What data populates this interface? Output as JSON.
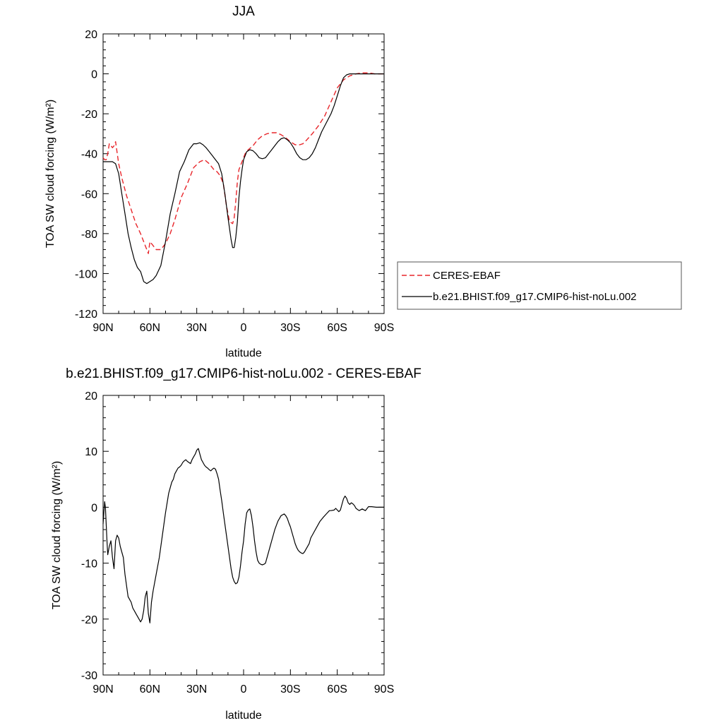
{
  "chart_data": [
    {
      "type": "line",
      "title": "JJA",
      "xlabel": "latitude",
      "ylabel": "TOA SW cloud forcing (W/m²)",
      "xlim": [
        90,
        -90
      ],
      "ylim": [
        -120,
        20
      ],
      "x_tick_values": [
        90,
        60,
        30,
        0,
        -30,
        -60,
        -90
      ],
      "x_tick_labels": [
        "90N",
        "60N",
        "30N",
        "0",
        "30S",
        "60S",
        "90S"
      ],
      "y_tick_values": [
        20,
        0,
        -20,
        -40,
        -60,
        -80,
        -100,
        -120
      ],
      "y_tick_labels": [
        "20",
        "0",
        "-20",
        "-40",
        "-60",
        "-80",
        "-100",
        "-120"
      ],
      "legend": "right",
      "series": [
        {
          "name": "CERES-EBAF",
          "color": "#e8262b",
          "dash": true,
          "x": [
            90,
            89,
            88,
            87,
            86,
            85,
            84,
            83,
            82,
            80,
            78,
            75,
            72,
            69,
            66,
            64,
            62,
            61,
            60,
            58,
            56,
            53,
            50,
            47,
            44,
            40,
            36,
            32,
            28,
            25,
            22,
            19,
            17,
            15,
            13,
            11,
            9,
            7,
            6,
            5,
            4,
            3,
            1,
            -1,
            -3,
            -6,
            -9,
            -12,
            -15,
            -18,
            -21,
            -24,
            -27,
            -30,
            -33,
            -36,
            -38,
            -40,
            -44,
            -48,
            -52,
            -56,
            -60,
            -64,
            -68,
            -72,
            -76,
            -80,
            -84,
            -88,
            -90
          ],
          "y": [
            -42,
            -43,
            -43,
            -40,
            -35,
            -36,
            -37,
            -36,
            -34,
            -45,
            -52,
            -61,
            -68,
            -75,
            -80,
            -84,
            -88,
            -90,
            -84,
            -86,
            -88,
            -88,
            -85,
            -80,
            -73,
            -62,
            -55,
            -47,
            -44,
            -43,
            -45,
            -48,
            -49,
            -51,
            -55,
            -66,
            -74,
            -75,
            -72,
            -64,
            -54,
            -48,
            -44,
            -40,
            -38,
            -36,
            -33,
            -31,
            -30,
            -29.5,
            -29.5,
            -30.5,
            -32,
            -34,
            -35.5,
            -35.5,
            -35,
            -33.5,
            -30,
            -26,
            -21,
            -14,
            -7,
            -3,
            -1,
            0,
            0.5,
            0.5,
            0,
            0,
            0
          ]
        },
        {
          "name": "b.e21.BHIST.f09_g17.CMIP6-hist-noLu.002",
          "color": "#000000",
          "dash": false,
          "x": [
            90,
            88,
            86,
            84,
            82,
            80,
            78,
            76,
            74,
            72,
            70,
            68,
            66,
            64,
            62,
            60,
            58,
            56,
            53,
            50,
            47,
            44,
            41,
            38,
            35,
            32,
            30,
            28,
            26,
            24,
            22,
            20,
            18,
            16,
            14,
            12,
            10,
            8,
            7,
            6,
            5,
            4,
            3,
            2,
            1,
            0,
            -2,
            -4,
            -6,
            -8,
            -10,
            -12,
            -14,
            -16,
            -18,
            -20,
            -22,
            -24,
            -26,
            -28,
            -30,
            -32,
            -34,
            -36,
            -38,
            -40,
            -42,
            -44,
            -46,
            -48,
            -50,
            -52,
            -54,
            -56,
            -58,
            -60,
            -62,
            -64,
            -66,
            -68,
            -70,
            -74,
            -78,
            -82,
            -86,
            -90
          ],
          "y": [
            -44,
            -44,
            -44,
            -44,
            -45,
            -50,
            -60,
            -70,
            -80,
            -87,
            -93,
            -97,
            -99,
            -104,
            -105,
            -104,
            -103,
            -101,
            -96,
            -84,
            -70,
            -60,
            -49,
            -44,
            -38,
            -35,
            -35,
            -34.5,
            -35.5,
            -37,
            -39,
            -41,
            -43,
            -45,
            -50,
            -60,
            -72,
            -83,
            -87,
            -87,
            -82,
            -74,
            -62,
            -54,
            -48,
            -43,
            -39,
            -38,
            -38.5,
            -40,
            -42,
            -42.5,
            -42,
            -40,
            -38,
            -36,
            -34,
            -32.5,
            -32,
            -33,
            -34.5,
            -37,
            -40,
            -42,
            -43,
            -43,
            -42,
            -40,
            -37,
            -33,
            -29,
            -26,
            -23,
            -20,
            -16,
            -11,
            -6,
            -2,
            -0.5,
            0,
            0,
            0,
            0,
            0,
            0,
            0
          ]
        }
      ]
    },
    {
      "type": "line",
      "title": "b.e21.BHIST.f09_g17.CMIP6-hist-noLu.002 - CERES-EBAF",
      "xlabel": "latitude",
      "ylabel": "TOA SW cloud forcing (W/m²)",
      "xlim": [
        90,
        -90
      ],
      "ylim": [
        -30,
        20
      ],
      "x_tick_values": [
        90,
        60,
        30,
        0,
        -30,
        -60,
        -90
      ],
      "x_tick_labels": [
        "90N",
        "60N",
        "30N",
        "0",
        "30S",
        "60S",
        "90S"
      ],
      "y_tick_values": [
        20,
        10,
        0,
        -10,
        -20,
        -30
      ],
      "y_tick_labels": [
        "20",
        "10",
        "0",
        "-10",
        "-20",
        "-30"
      ],
      "series": [
        {
          "color": "#000000",
          "dash": false,
          "x": [
            90,
            89,
            88.5,
            88,
            87.5,
            87,
            86,
            85,
            84,
            83,
            82,
            81,
            80,
            79,
            78,
            77,
            76,
            75,
            74,
            73,
            72,
            71,
            70,
            69,
            68,
            67,
            66,
            65,
            64,
            63,
            62,
            61,
            60,
            59,
            58,
            56,
            54,
            52,
            50,
            48,
            47,
            46,
            45,
            44,
            43,
            42,
            41,
            40,
            39,
            38,
            37,
            36,
            35,
            34,
            33,
            32,
            31,
            30,
            29,
            28,
            27,
            26,
            25,
            24,
            23,
            22,
            21,
            20,
            19,
            18,
            17,
            16,
            15,
            14,
            13,
            12,
            11,
            10,
            9,
            8,
            7,
            6,
            5,
            4,
            3,
            2,
            1,
            0,
            -1,
            -2,
            -3,
            -4,
            -5,
            -6,
            -7,
            -8,
            -9,
            -10,
            -11,
            -12,
            -13,
            -14,
            -15,
            -16,
            -17,
            -18,
            -19,
            -20,
            -22,
            -24,
            -26,
            -27,
            -28,
            -29,
            -30,
            -31,
            -32,
            -33,
            -34,
            -35,
            -36,
            -37,
            -38,
            -39,
            -40,
            -41,
            -42,
            -43,
            -45,
            -47,
            -49,
            -51,
            -53,
            -55,
            -56,
            -58,
            -59,
            -60,
            -61,
            -62,
            -63,
            -64,
            -65,
            -66,
            -67,
            -68,
            -69,
            -70,
            -71,
            -72,
            -74,
            -76,
            -78,
            -80,
            -82,
            -85,
            -88,
            -90
          ],
          "y": [
            -3,
            1,
            0,
            -3,
            -6,
            -8.5,
            -7,
            -6,
            -9,
            -11,
            -6,
            -5,
            -5.5,
            -7,
            -8,
            -9,
            -12,
            -14,
            -16,
            -16.5,
            -17,
            -18,
            -18.5,
            -19,
            -19.5,
            -20,
            -20.5,
            -20,
            -18.5,
            -16,
            -15,
            -19,
            -20.7,
            -17,
            -15,
            -12,
            -9,
            -5,
            -1,
            2.5,
            3.5,
            4.5,
            5,
            6,
            6.5,
            7,
            7.2,
            7.5,
            8,
            8.3,
            8.5,
            8.2,
            8,
            7.8,
            8.5,
            9,
            9.5,
            10.2,
            10.5,
            9.5,
            8.5,
            8,
            7.5,
            7.2,
            7,
            6.7,
            6.5,
            6.8,
            7,
            6.8,
            6,
            5,
            3,
            1.2,
            -1,
            -3,
            -5,
            -7,
            -9,
            -11,
            -12.5,
            -13.3,
            -13.7,
            -13.5,
            -12.5,
            -10.5,
            -8,
            -6,
            -3,
            -1,
            -0.5,
            -0.3,
            -1.5,
            -3.5,
            -6,
            -8,
            -9.5,
            -10,
            -10.2,
            -10.3,
            -10.2,
            -10,
            -9,
            -8,
            -7,
            -6,
            -5,
            -4,
            -2.5,
            -1.5,
            -1.2,
            -1.5,
            -2,
            -2.8,
            -3.5,
            -4.5,
            -5.5,
            -6.5,
            -7.2,
            -7.7,
            -8,
            -8.2,
            -8.3,
            -8,
            -7.5,
            -7,
            -6.5,
            -5.5,
            -4.5,
            -3.5,
            -2.5,
            -1.8,
            -1.2,
            -0.6,
            -0.6,
            -0.5,
            -0.2,
            -0.5,
            -0.8,
            -0.5,
            0.5,
            1.5,
            2,
            1.6,
            0.8,
            0.5,
            0.8,
            0.6,
            0.3,
            -0.2,
            -0.6,
            -0.3,
            -0.6,
            0.1,
            0.1,
            0,
            0,
            0
          ]
        }
      ]
    }
  ]
}
